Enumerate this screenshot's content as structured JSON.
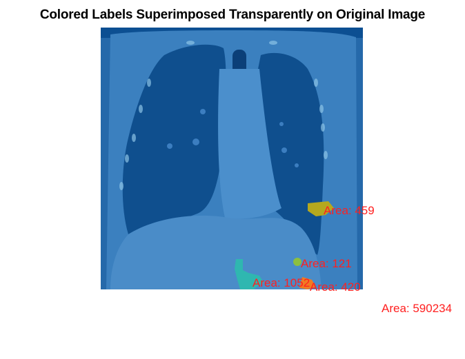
{
  "figure": {
    "title": "Colored Labels Superimposed Transparently on Original Image"
  },
  "image": {
    "subject": "coronal chest CT slice with colored label overlay",
    "overlay_color": "#1f5fa8",
    "background_tint": "#0b4f93"
  },
  "labels": [
    {
      "text": "Area: 459",
      "color": "#b5a81e"
    },
    {
      "text": "Area: 121",
      "color": "#8cbf3f"
    },
    {
      "text": "Area: 1052",
      "color": "#2fb7b0"
    },
    {
      "text": "Area: 420",
      "color": "#f07b22"
    },
    {
      "text": "Area: 590234",
      "color": "#0b4f93"
    }
  ],
  "label_text_color": "#ff2020"
}
